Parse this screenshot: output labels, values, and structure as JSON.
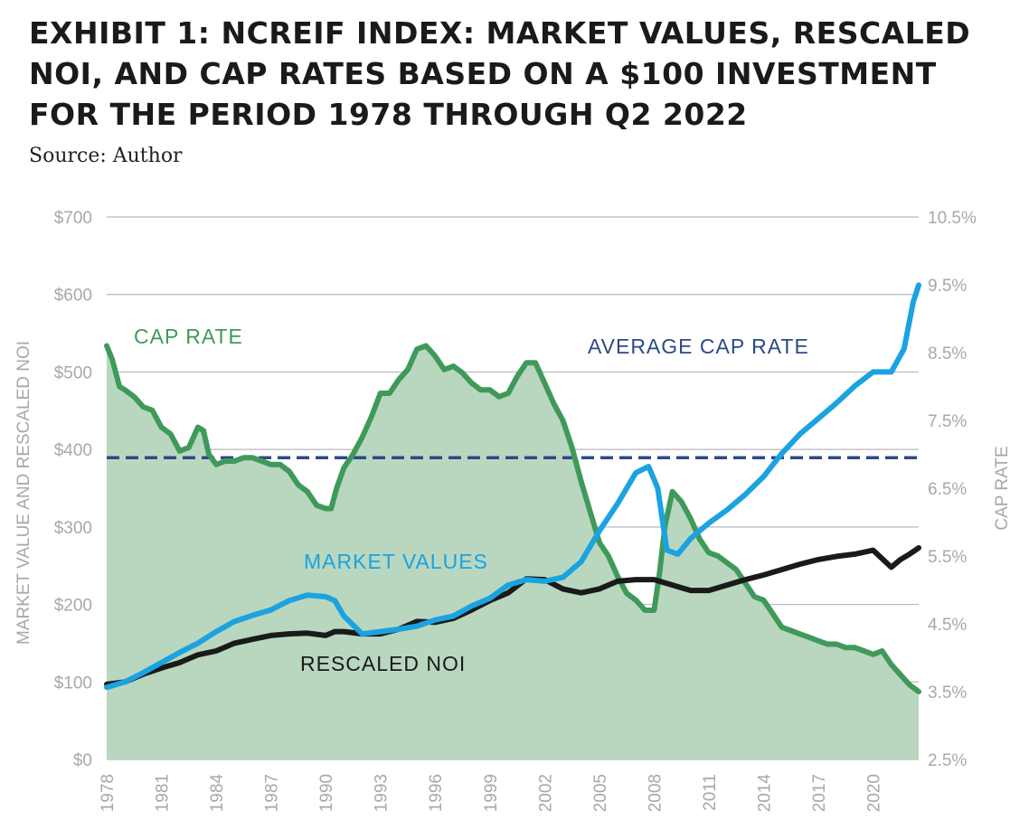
{
  "header": {
    "title": "EXHIBIT 1: NCREIF INDEX: MARKET VALUES, RESCALED NOI, AND CAP RATES BASED ON A $100 INVESTMENT FOR THE PERIOD 1978 THROUGH Q2 2022",
    "source": "Source: Author"
  },
  "colors": {
    "cap_rate": "#3f9a5a",
    "cap_rate_fill": "#b9d7bf",
    "market_values": "#1aa3e0",
    "rescaled_noi": "#1a1a1a",
    "average_cap_rate": "#2b4a87",
    "grid": "#b8b8b8",
    "tick_text": "#a8a8a8"
  },
  "chart_data": {
    "type": "line",
    "xlabel": "",
    "ylabel": "MARKET VALUE AND RESCALED NOI",
    "y2label": "CAP RATE",
    "xlim": [
      1978,
      2022.5
    ],
    "ylim": [
      0,
      700
    ],
    "y2lim": [
      2.5,
      10.5
    ],
    "x_ticks": [
      "1978",
      "1981",
      "1984",
      "1987",
      "1990",
      "1993",
      "1996",
      "1999",
      "2002",
      "2005",
      "2008",
      "2011",
      "2014",
      "2017",
      "2020"
    ],
    "y_ticks": [
      "$0",
      "$100",
      "$200",
      "$300",
      "$400",
      "$500",
      "$600",
      "$700"
    ],
    "y2_ticks": [
      "2.5%",
      "3.5%",
      "4.5%",
      "5.5%",
      "6.5%",
      "7.5%",
      "8.5%",
      "9.5%",
      "10.5%"
    ],
    "grid": true,
    "annotations": {
      "cap_rate": "CAP RATE",
      "average_cap_rate": "AVERAGE CAP RATE",
      "market_values": "MARKET VALUES",
      "rescaled_noi": "RESCALED NOI"
    },
    "average_cap_rate": 6.95,
    "series": [
      {
        "name": "CAP RATE",
        "axis": "right",
        "x": [
          1978,
          1978.3,
          1978.7,
          1979,
          1979.5,
          1980,
          1980.5,
          1981,
          1981.5,
          1982,
          1982.5,
          1983,
          1983.3,
          1983.6,
          1984,
          1984.5,
          1985,
          1985.5,
          1986,
          1986.5,
          1987,
          1987.5,
          1988,
          1988.5,
          1989,
          1989.5,
          1990,
          1990.3,
          1990.6,
          1991,
          1991.5,
          1992,
          1992.5,
          1993,
          1993.5,
          1994,
          1994.5,
          1995,
          1995.5,
          1996,
          1996.5,
          1997,
          1997.5,
          1998,
          1998.5,
          1999,
          1999.5,
          2000,
          2000.5,
          2001,
          2001.5,
          2002,
          2002.5,
          2003,
          2003.5,
          2004,
          2004.5,
          2005,
          2005.5,
          2006,
          2006.5,
          2007,
          2007.5,
          2008,
          2008.3,
          2008.6,
          2009,
          2009.5,
          2010,
          2010.5,
          2011,
          2011.5,
          2012,
          2012.5,
          2013,
          2013.5,
          2014,
          2014.5,
          2015,
          2015.5,
          2016,
          2016.5,
          2017,
          2017.5,
          2018,
          2018.5,
          2019,
          2019.5,
          2020,
          2020.5,
          2021,
          2021.5,
          2022,
          2022.5
        ],
        "values": [
          8.6,
          8.4,
          8.0,
          7.95,
          7.85,
          7.7,
          7.65,
          7.4,
          7.3,
          7.05,
          7.1,
          7.4,
          7.35,
          7.0,
          6.85,
          6.9,
          6.9,
          6.95,
          6.95,
          6.9,
          6.85,
          6.85,
          6.75,
          6.55,
          6.45,
          6.25,
          6.2,
          6.2,
          6.5,
          6.8,
          7.0,
          7.25,
          7.55,
          7.9,
          7.9,
          8.1,
          8.25,
          8.55,
          8.6,
          8.45,
          8.25,
          8.3,
          8.2,
          8.05,
          7.95,
          7.95,
          7.85,
          7.9,
          8.15,
          8.35,
          8.35,
          8.05,
          7.75,
          7.5,
          7.1,
          6.6,
          6.15,
          5.7,
          5.5,
          5.2,
          4.95,
          4.85,
          4.7,
          4.7,
          5.25,
          5.95,
          6.45,
          6.3,
          6.05,
          5.75,
          5.55,
          5.5,
          5.4,
          5.3,
          5.1,
          4.9,
          4.85,
          4.65,
          4.45,
          4.4,
          4.35,
          4.3,
          4.25,
          4.2,
          4.2,
          4.15,
          4.15,
          4.1,
          4.05,
          4.1,
          3.9,
          3.75,
          3.6,
          3.5
        ]
      },
      {
        "name": "MARKET VALUES",
        "axis": "left",
        "x": [
          1978,
          1979,
          1980,
          1981,
          1982,
          1983,
          1984,
          1985,
          1986,
          1987,
          1988,
          1989,
          1990,
          1990.5,
          1991,
          1992,
          1993,
          1994,
          1995,
          1996,
          1997,
          1998,
          1999,
          2000,
          2001,
          2002,
          2003,
          2004,
          2005,
          2006,
          2007,
          2007.7,
          2008.2,
          2008.7,
          2009.3,
          2010,
          2011,
          2012,
          2013,
          2014,
          2015,
          2016,
          2017,
          2018,
          2019,
          2020,
          2021,
          2021.7,
          2022.2,
          2022.5
        ],
        "values": [
          93,
          100,
          112,
          125,
          138,
          150,
          165,
          178,
          186,
          193,
          205,
          212,
          210,
          205,
          185,
          162,
          165,
          168,
          172,
          180,
          185,
          198,
          208,
          225,
          232,
          230,
          235,
          255,
          295,
          330,
          370,
          378,
          350,
          270,
          265,
          285,
          305,
          322,
          342,
          365,
          395,
          420,
          440,
          460,
          482,
          500,
          500,
          530,
          590,
          612
        ]
      },
      {
        "name": "RESCALED NOI",
        "axis": "left",
        "x": [
          1978,
          1979,
          1980,
          1981,
          1982,
          1983,
          1984,
          1985,
          1986,
          1987,
          1988,
          1989,
          1990,
          1990.5,
          1991,
          1992,
          1993,
          1994,
          1995,
          1996,
          1997,
          1998,
          1999,
          2000,
          2001,
          2002,
          2003,
          2004,
          2005,
          2006,
          2007,
          2008,
          2009,
          2010,
          2011,
          2012,
          2013,
          2014,
          2015,
          2016,
          2017,
          2018,
          2019,
          2020,
          2021,
          2021.5,
          2022,
          2022.5
        ],
        "values": [
          97,
          100,
          110,
          118,
          125,
          135,
          140,
          150,
          155,
          160,
          162,
          163,
          160,
          165,
          165,
          162,
          162,
          168,
          178,
          177,
          182,
          193,
          205,
          215,
          233,
          232,
          220,
          215,
          220,
          230,
          232,
          232,
          225,
          218,
          218,
          225,
          232,
          238,
          245,
          252,
          258,
          262,
          265,
          270,
          248,
          258,
          265,
          273
        ]
      }
    ]
  }
}
